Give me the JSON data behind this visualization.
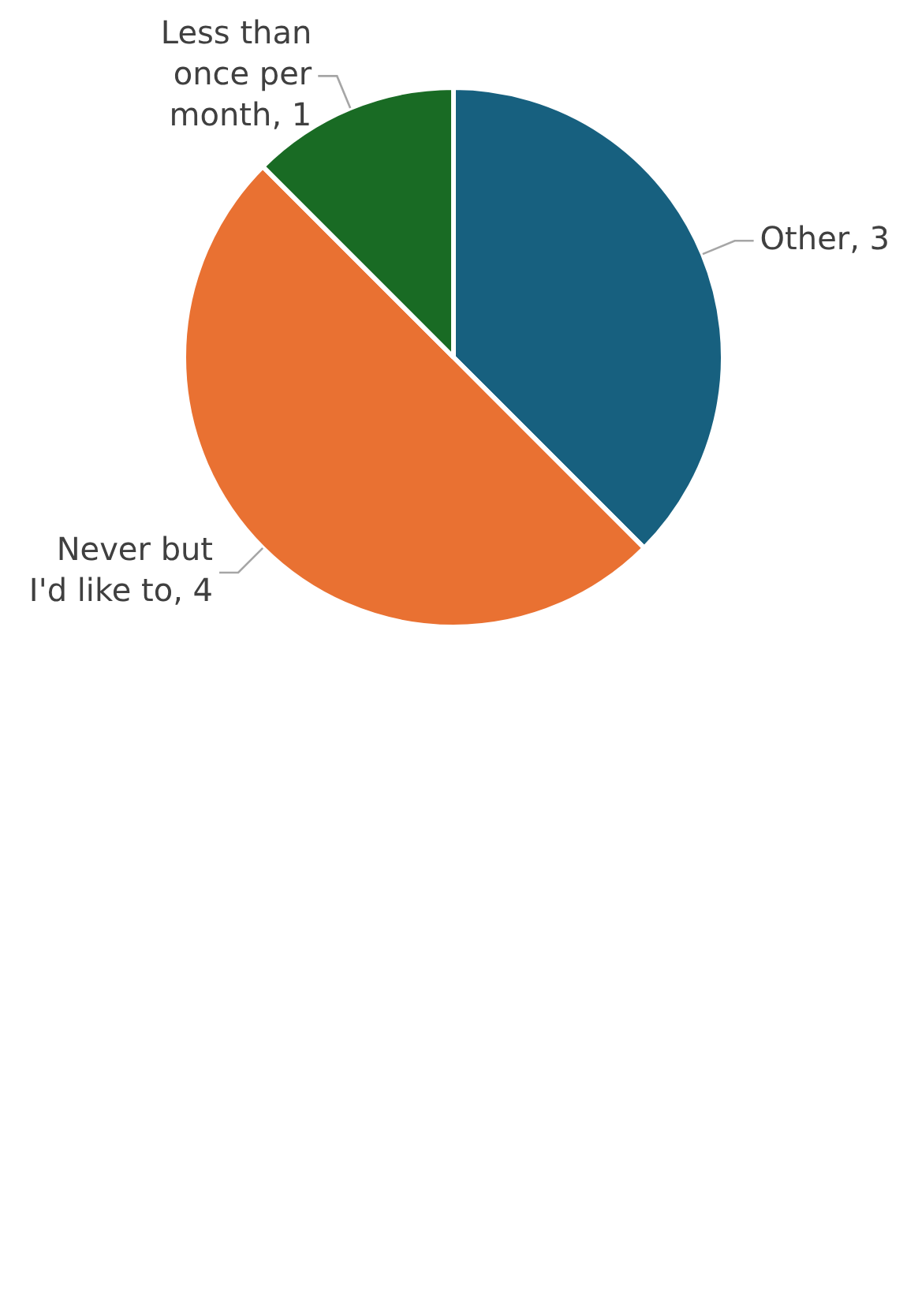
{
  "chart_data": {
    "type": "pie",
    "categories": [
      "Other",
      "Never but I'd like to",
      "Less than once per month"
    ],
    "values": [
      3,
      4,
      1
    ],
    "colors": [
      "#17607f",
      "#e97132",
      "#196b24"
    ],
    "value_labels": [
      ", 3",
      ", 4",
      ", 1"
    ],
    "legend": false
  }
}
